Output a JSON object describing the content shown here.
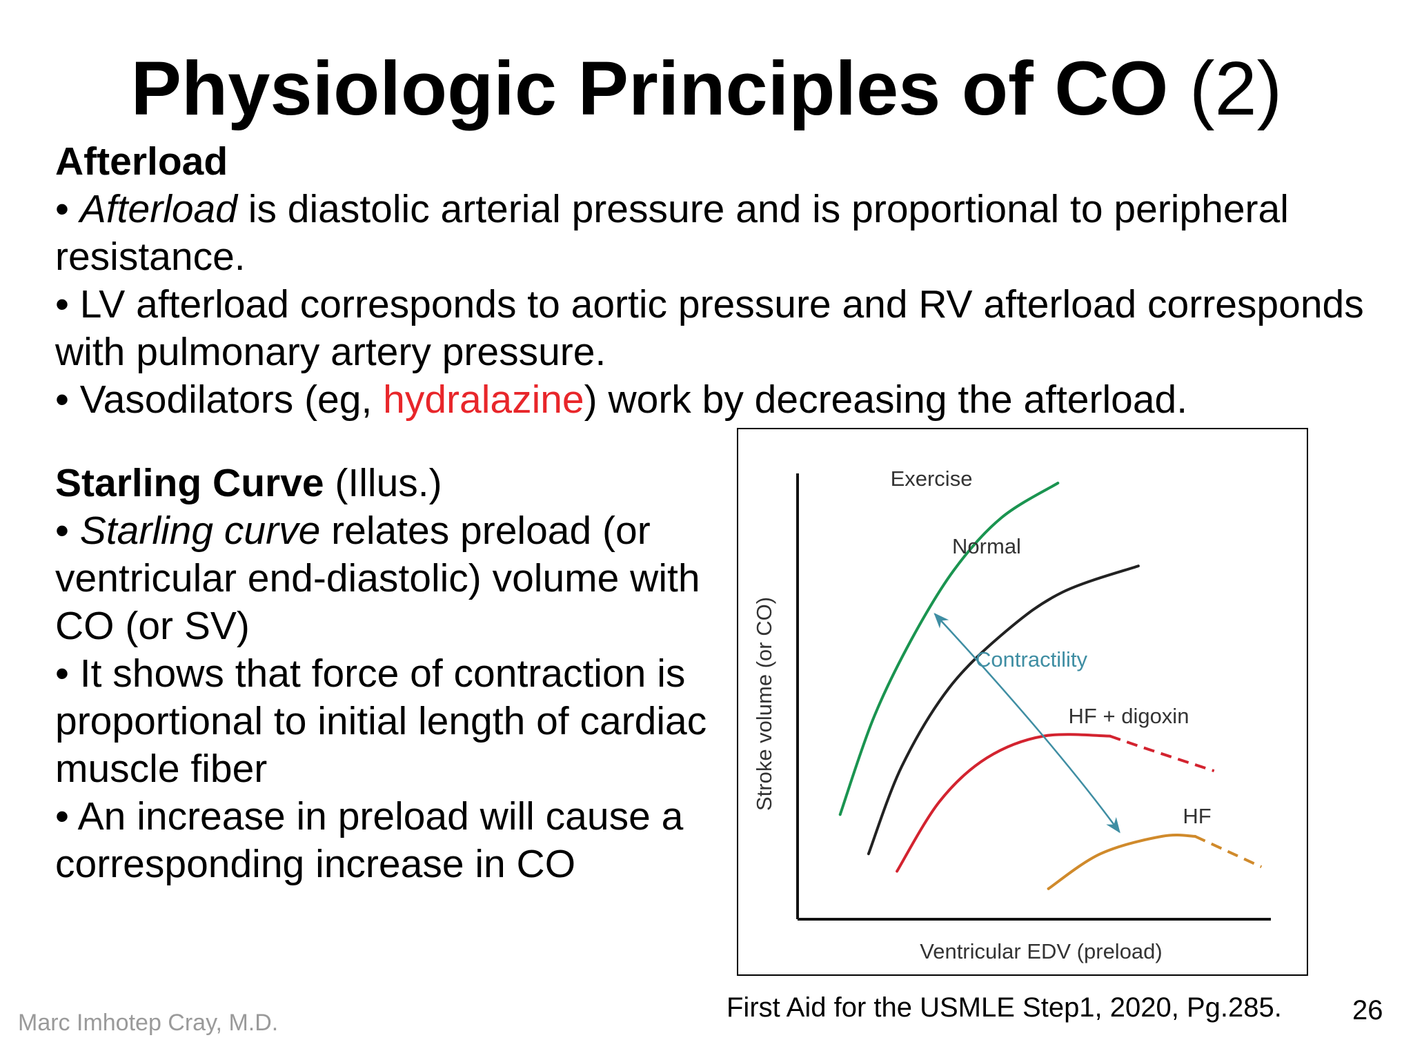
{
  "slide": {
    "title_main": "Physiologic Principles of CO",
    "title_suffix": " (2)",
    "afterload": {
      "heading": "Afterload",
      "b1_pre": "• ",
      "b1_italic": "Afterload",
      "b1_rest": " is diastolic arterial pressure and is proportional to peripheral",
      "b1_line2": "resistance.",
      "b2_line1": "• LV afterload corresponds to aortic pressure and RV afterload corresponds",
      "b2_line2": "with pulmonary artery pressure.",
      "b3_pre": "• Vasodilators (eg, ",
      "b3_red": "hydralazine",
      "b3_post": ") work by decreasing the afterload."
    },
    "starling": {
      "heading_bold": "Starling Curve",
      "heading_rest": " (Illus.)",
      "b1_pre": "• ",
      "b1_italic": "Starling curve",
      "b1_rest": " relates preload (or",
      "b1_line2": "ventricular end-diastolic) volume with",
      "b1_line3": "CO (or SV)",
      "b2_line1": "• It shows that force of contraction is",
      "b2_line2": "proportional to initial length of cardiac",
      "b2_line3": "muscle fiber",
      "b3_line1": "• An increase in preload will cause a",
      "b3_line2": "corresponding increase in CO"
    },
    "source": "First Aid for the USMLE Step1, 2020, Pg.285.",
    "page_number": "26",
    "author": "Marc Imhotep Cray, M.D.",
    "accent_color": "#e8262a"
  },
  "chart_data": {
    "type": "line",
    "xlabel": "Ventricular EDV (preload)",
    "ylabel": "Stroke volume (or CO)",
    "xlim": [
      0,
      100
    ],
    "ylim": [
      0,
      100
    ],
    "grid": false,
    "series": [
      {
        "name": "Exercise",
        "color": "#1a9450",
        "points": [
          [
            9,
            24
          ],
          [
            16,
            46
          ],
          [
            24,
            64
          ],
          [
            33,
            80
          ],
          [
            43,
            92
          ],
          [
            55,
            100
          ]
        ]
      },
      {
        "name": "Normal",
        "color": "#222222",
        "points": [
          [
            15,
            15
          ],
          [
            22,
            35
          ],
          [
            32,
            53
          ],
          [
            44,
            66
          ],
          [
            56,
            75
          ],
          [
            72,
            81
          ]
        ]
      },
      {
        "name": "HF + digoxin",
        "color": "#d3232f",
        "points": [
          [
            21,
            11
          ],
          [
            30,
            27
          ],
          [
            40,
            37
          ],
          [
            52,
            42
          ],
          [
            66,
            42
          ]
        ],
        "dashed_points": [
          [
            66,
            42
          ],
          [
            74,
            39
          ],
          [
            88,
            34
          ]
        ]
      },
      {
        "name": "HF",
        "color": "#d08a2b",
        "points": [
          [
            53,
            7
          ],
          [
            64,
            15
          ],
          [
            77,
            19
          ],
          [
            84,
            19
          ]
        ],
        "dashed_points": [
          [
            84,
            19
          ],
          [
            92,
            15
          ],
          [
            98,
            12
          ]
        ]
      }
    ],
    "annotations": [
      {
        "text": "Contractility",
        "color": "#3f8ea3",
        "from": [
          68,
          20
        ],
        "to": [
          29,
          70
        ],
        "double_headed": true
      }
    ]
  }
}
